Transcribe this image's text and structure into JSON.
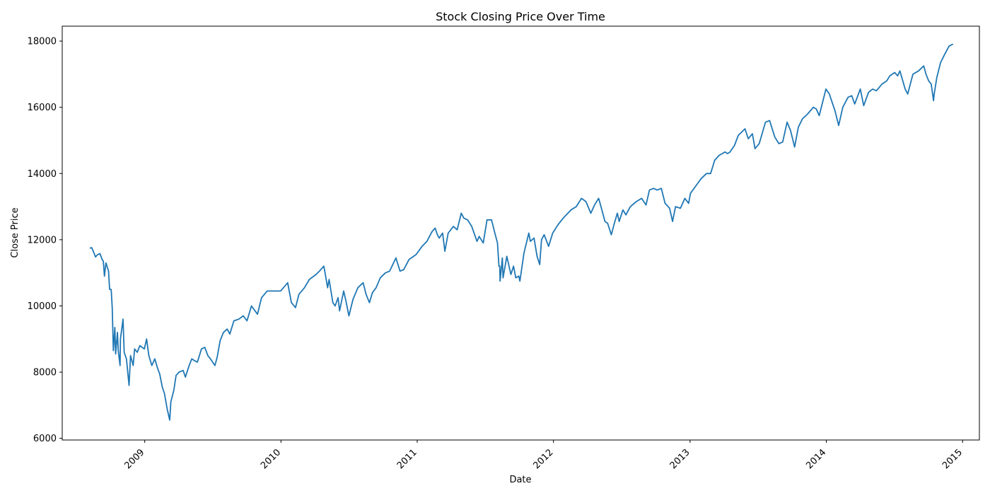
{
  "chart_data": {
    "type": "line",
    "title": "Stock Closing Price Over Time",
    "xlabel": "Date",
    "ylabel": "Close Price",
    "xlim": [
      "2008-05-25",
      "2015-02-15"
    ],
    "ylim": [
      5950,
      18450
    ],
    "x_ticks": [
      "2009",
      "2010",
      "2011",
      "2012",
      "2013",
      "2014",
      "2015"
    ],
    "y_ticks": [
      6000,
      8000,
      10000,
      12000,
      14000,
      16000,
      18000
    ],
    "grid": false,
    "legend": "none",
    "colors": {
      "line": "#1f77b4"
    },
    "series": [
      {
        "x": [
          "2008-08-08",
          "2008-08-12",
          "2008-08-18",
          "2008-08-22",
          "2008-08-28",
          "2008-09-03",
          "2008-09-09",
          "2008-09-12",
          "2008-09-15",
          "2008-09-19",
          "2008-09-26",
          "2008-09-29",
          "2008-10-03",
          "2008-10-06",
          "2008-10-09",
          "2008-10-13",
          "2008-10-15",
          "2008-10-20",
          "2008-10-22",
          "2008-10-27",
          "2008-10-28",
          "2008-11-04",
          "2008-11-07",
          "2008-11-13",
          "2008-11-20",
          "2008-11-24",
          "2008-12-01",
          "2008-12-05",
          "2008-12-12",
          "2008-12-19",
          "2008-12-31",
          "2009-01-06",
          "2009-01-12",
          "2009-01-20",
          "2009-01-28",
          "2009-02-05",
          "2009-02-10",
          "2009-02-17",
          "2009-02-23",
          "2009-03-02",
          "2009-03-09",
          "2009-03-12",
          "2009-03-20",
          "2009-03-26",
          "2009-04-03",
          "2009-04-14",
          "2009-04-20",
          "2009-04-30",
          "2009-05-07",
          "2009-05-14",
          "2009-05-22",
          "2009-06-02",
          "2009-06-11",
          "2009-06-19",
          "2009-06-26",
          "2009-07-08",
          "2009-07-14",
          "2009-07-22",
          "2009-07-31",
          "2009-08-10",
          "2009-08-17",
          "2009-08-28",
          "2009-09-10",
          "2009-09-22",
          "2009-10-02",
          "2009-10-14",
          "2009-10-30",
          "2009-11-10",
          "2009-11-25",
          "2009-12-10",
          "2009-12-31",
          "2010-01-19",
          "2010-01-29",
          "2010-02-09",
          "2010-02-18",
          "2010-03-05",
          "2010-03-18",
          "2010-04-05",
          "2010-04-14",
          "2010-04-26",
          "2010-05-06",
          "2010-05-10",
          "2010-05-20",
          "2010-05-26",
          "2010-06-03",
          "2010-06-07",
          "2010-06-18",
          "2010-06-24",
          "2010-07-02",
          "2010-07-13",
          "2010-07-26",
          "2010-08-09",
          "2010-08-17",
          "2010-08-26",
          "2010-09-03",
          "2010-09-13",
          "2010-09-24",
          "2010-10-08",
          "2010-10-19",
          "2010-11-05",
          "2010-11-16",
          "2010-11-26",
          "2010-12-10",
          "2010-12-29",
          "2011-01-14",
          "2011-01-27",
          "2011-02-10",
          "2011-02-18",
          "2011-02-24",
          "2011-03-01",
          "2011-03-10",
          "2011-03-16",
          "2011-03-25",
          "2011-04-08",
          "2011-04-18",
          "2011-04-29",
          "2011-05-06",
          "2011-05-16",
          "2011-05-27",
          "2011-06-10",
          "2011-06-16",
          "2011-06-27",
          "2011-07-07",
          "2011-07-19",
          "2011-07-28",
          "2011-08-04",
          "2011-08-08",
          "2011-08-10",
          "2011-08-11",
          "2011-08-17",
          "2011-08-19",
          "2011-08-29",
          "2011-09-09",
          "2011-09-16",
          "2011-09-22",
          "2011-09-30",
          "2011-10-03",
          "2011-10-14",
          "2011-10-27",
          "2011-10-31",
          "2011-11-10",
          "2011-11-18",
          "2011-11-25",
          "2011-11-30",
          "2011-12-07",
          "2011-12-19",
          "2011-12-30",
          "2012-01-13",
          "2012-01-27",
          "2012-02-17",
          "2012-03-02",
          "2012-03-16",
          "2012-03-28",
          "2012-04-10",
          "2012-04-20",
          "2012-05-01",
          "2012-05-11",
          "2012-05-18",
          "2012-05-25",
          "2012-06-04",
          "2012-06-11",
          "2012-06-20",
          "2012-06-25",
          "2012-07-05",
          "2012-07-13",
          "2012-07-25",
          "2012-08-10",
          "2012-08-24",
          "2012-09-05",
          "2012-09-14",
          "2012-09-25",
          "2012-10-05",
          "2012-10-16",
          "2012-10-26",
          "2012-11-07",
          "2012-11-15",
          "2012-11-23",
          "2012-12-06",
          "2012-12-18",
          "2012-12-28",
          "2013-01-02",
          "2013-01-18",
          "2013-01-31",
          "2013-02-14",
          "2013-02-25",
          "2013-03-08",
          "2013-03-20",
          "2013-04-05",
          "2013-04-11",
          "2013-04-18",
          "2013-04-30",
          "2013-05-10",
          "2013-05-28",
          "2013-06-06",
          "2013-06-17",
          "2013-06-24",
          "2013-07-05",
          "2013-07-22",
          "2013-08-02",
          "2013-08-16",
          "2013-08-27",
          "2013-09-06",
          "2013-09-18",
          "2013-09-27",
          "2013-10-08",
          "2013-10-18",
          "2013-10-29",
          "2013-11-12",
          "2013-11-27",
          "2013-12-05",
          "2013-12-13",
          "2013-12-31",
          "2014-01-09",
          "2014-01-24",
          "2014-02-03",
          "2014-02-14",
          "2014-02-28",
          "2014-03-10",
          "2014-03-18",
          "2014-04-02",
          "2014-04-11",
          "2014-04-24",
          "2014-05-05",
          "2014-05-15",
          "2014-05-30",
          "2014-06-12",
          "2014-06-20",
          "2014-07-03",
          "2014-07-11",
          "2014-07-17",
          "2014-07-31",
          "2014-08-07",
          "2014-08-21",
          "2014-09-05",
          "2014-09-19",
          "2014-09-25",
          "2014-10-02",
          "2014-10-09",
          "2014-10-15",
          "2014-10-17",
          "2014-10-24",
          "2014-11-03",
          "2014-11-14",
          "2014-11-26",
          "2014-12-05"
        ],
        "values": [
          11750,
          11760,
          11600,
          11480,
          11550,
          11580,
          11400,
          11350,
          10900,
          11300,
          11050,
          10500,
          10500,
          9950,
          8650,
          9350,
          8550,
          9200,
          8650,
          8200,
          9000,
          9600,
          8600,
          8400,
          7600,
          8500,
          8200,
          8700,
          8600,
          8800,
          8700,
          9000,
          8500,
          8200,
          8400,
          8100,
          7950,
          7550,
          7350,
          6900,
          6550,
          7100,
          7450,
          7900,
          8000,
          8050,
          7850,
          8200,
          8400,
          8350,
          8300,
          8700,
          8750,
          8500,
          8400,
          8200,
          8450,
          8950,
          9200,
          9300,
          9150,
          9550,
          9600,
          9700,
          9550,
          10000,
          9750,
          10250,
          10450,
          10450,
          10450,
          10700,
          10100,
          9950,
          10350,
          10550,
          10800,
          10950,
          11050,
          11200,
          10550,
          10800,
          10100,
          10000,
          10250,
          9850,
          10450,
          10150,
          9700,
          10200,
          10550,
          10700,
          10350,
          10100,
          10400,
          10550,
          10850,
          11000,
          11050,
          11450,
          11050,
          11100,
          11400,
          11550,
          11800,
          11950,
          12250,
          12350,
          12150,
          12050,
          12200,
          11650,
          12200,
          12400,
          12300,
          12800,
          12650,
          12600,
          12400,
          11950,
          12100,
          11900,
          12600,
          12600,
          12200,
          11900,
          11200,
          11200,
          10750,
          11450,
          10850,
          11500,
          10950,
          11200,
          10850,
          10900,
          10750,
          11600,
          12200,
          11950,
          12050,
          11500,
          11250,
          12000,
          12150,
          11800,
          12200,
          12450,
          12650,
          12900,
          13000,
          13250,
          13150,
          12800,
          13050,
          13250,
          12850,
          12550,
          12500,
          12150,
          12450,
          12800,
          12550,
          12900,
          12750,
          13000,
          13150,
          13250,
          13050,
          13500,
          13550,
          13500,
          13550,
          13100,
          12950,
          12550,
          13000,
          12950,
          13250,
          13100,
          13400,
          13650,
          13850,
          14000,
          14000,
          14400,
          14550,
          14650,
          14600,
          14650,
          14850,
          15150,
          15350,
          15050,
          15200,
          14750,
          14900,
          15550,
          15600,
          15100,
          14900,
          14950,
          15550,
          15300,
          14800,
          15400,
          15650,
          15800,
          16000,
          15950,
          15750,
          16550,
          16400,
          15900,
          15450,
          16000,
          16300,
          16350,
          16100,
          16550,
          16050,
          16450,
          16550,
          16500,
          16700,
          16800,
          16950,
          17050,
          16950,
          17100,
          16550,
          16400,
          17000,
          17100,
          17250,
          17000,
          16800,
          16700,
          16200,
          16400,
          16900,
          17350,
          17600,
          17850,
          17900
        ]
      }
    ]
  }
}
